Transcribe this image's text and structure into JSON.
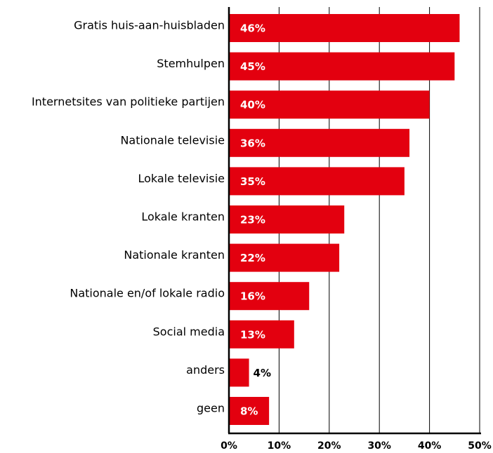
{
  "chart_data": {
    "type": "bar",
    "orientation": "horizontal",
    "categories": [
      "Gratis huis-aan-huisbladen",
      "Stemhulpen",
      "Internetsites van politieke partijen",
      "Nationale televisie",
      "Lokale televisie",
      "Lokale kranten",
      "Nationale kranten",
      "Nationale en/of lokale radio",
      "Social media",
      "anders",
      "geen"
    ],
    "values": [
      46,
      45,
      40,
      36,
      35,
      23,
      22,
      16,
      13,
      4,
      8
    ],
    "value_labels": [
      "46%",
      "45%",
      "40%",
      "36%",
      "35%",
      "23%",
      "22%",
      "16%",
      "13%",
      "4%",
      "8%"
    ],
    "xlim": [
      0,
      50
    ],
    "xticks": [
      0,
      10,
      20,
      30,
      40,
      50
    ],
    "xtick_labels": [
      "0%",
      "10%",
      "20%",
      "30%",
      "40%",
      "50%"
    ],
    "grid": true,
    "colors": {
      "bar": "#e3000f",
      "label_inside": "#ffffff",
      "label_outside": "#000000",
      "gridline": "#000000"
    }
  }
}
